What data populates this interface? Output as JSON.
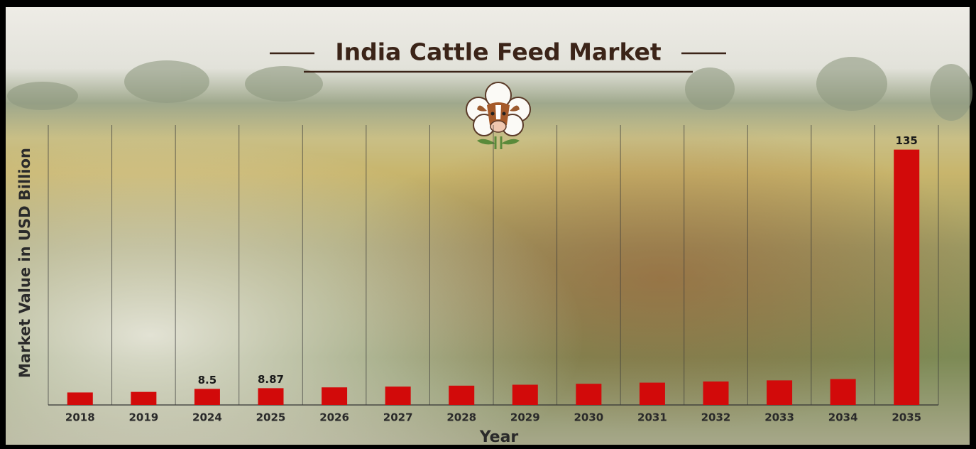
{
  "chart_data": {
    "type": "bar",
    "title": "India Cattle Feed Market",
    "x_label": "Year",
    "y_label": "Market Value in USD Billion",
    "categories": [
      "2018",
      "2019",
      "2024",
      "2025",
      "2026",
      "2027",
      "2028",
      "2029",
      "2030",
      "2031",
      "2032",
      "2033",
      "2034",
      "2035"
    ],
    "values": [
      6.6,
      6.9,
      8.5,
      8.87,
      9.3,
      9.7,
      10.2,
      10.7,
      11.2,
      11.8,
      12.4,
      13.0,
      13.7,
      135
    ],
    "value_labels": [
      null,
      null,
      "8.5",
      "8.87",
      null,
      null,
      null,
      null,
      null,
      null,
      null,
      null,
      null,
      "135"
    ],
    "color": "#d20a0a",
    "ylim": [
      0,
      148
    ]
  }
}
